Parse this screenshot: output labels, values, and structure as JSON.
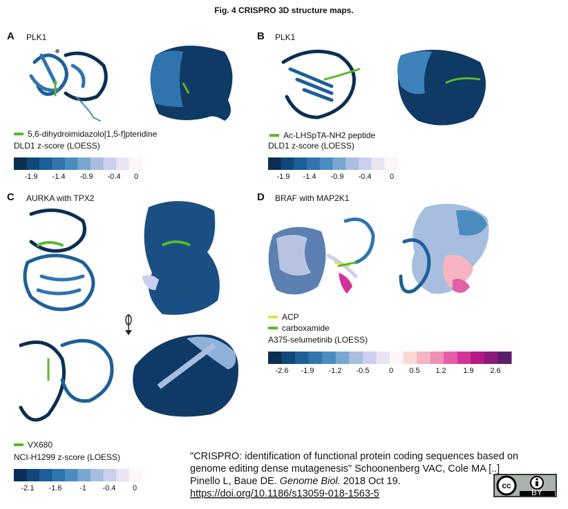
{
  "title": "Fig. 4 CRISPRO 3D structure maps.",
  "panels": [
    {
      "label": "A",
      "protein": "PLK1",
      "legend": [
        {
          "name": "5,6-dihydroimidazolo[1,5-f]pteridine",
          "color": "#5cb82a"
        }
      ],
      "scale": {
        "title": "DLD1 z-score (LOESS)",
        "colors": [
          "#0b2f52",
          "#11487a",
          "#1f5f98",
          "#2f74ad",
          "#4b8cc0",
          "#78a7d0",
          "#a7bee0",
          "#c9cfec",
          "#e8e4f3",
          "#fdf6f6"
        ],
        "ticks": [
          -1.9,
          -1.4,
          -0.9,
          -0.4,
          0
        ]
      }
    },
    {
      "label": "B",
      "protein": "PLK1",
      "legend": [
        {
          "name": "Ac-LHSpTA-NH2 peptide",
          "color": "#5cb82a"
        }
      ],
      "scale": {
        "title": "DLD1 z-score (LOESS)",
        "colors": [
          "#0b2f52",
          "#11487a",
          "#1f5f98",
          "#2f74ad",
          "#4b8cc0",
          "#78a7d0",
          "#a7bee0",
          "#c9cfec",
          "#e8e4f3",
          "#fdf6f6"
        ],
        "ticks": [
          -1.9,
          -1.4,
          -0.9,
          -0.4,
          0
        ]
      }
    },
    {
      "label": "C",
      "protein": "AURKA with TPX2",
      "legend": [
        {
          "name": "VX680",
          "color": "#5cb82a"
        }
      ],
      "scale": {
        "title": "NCI-H1299 z-score (LOESS)",
        "colors": [
          "#0b2f52",
          "#11487a",
          "#1f5f98",
          "#2f74ad",
          "#4b8cc0",
          "#78a7d0",
          "#a7bee0",
          "#c9cfec",
          "#e8e4f3",
          "#fdf6f6"
        ],
        "ticks": [
          -2.1,
          -1.6,
          -1,
          -0.4,
          0
        ]
      }
    },
    {
      "label": "D",
      "protein": "BRAF with MAP2K1",
      "legend": [
        {
          "name": "ACP",
          "color": "#e3de4a"
        },
        {
          "name": "carboxamide",
          "color": "#5cb82a"
        }
      ],
      "scale": {
        "title": "A375-selumetinib (LOESS)",
        "colors": [
          "#0b2f52",
          "#11487a",
          "#1f5f98",
          "#2f74ad",
          "#4b8cc0",
          "#78a7d0",
          "#a7bee0",
          "#c9cfec",
          "#e8e4f3",
          "#fdf6f6",
          "#fbd9d3",
          "#f6b5c0",
          "#ef8fb4",
          "#e45ea8",
          "#d33397",
          "#b61a86",
          "#8c1a7a",
          "#5c1e6b"
        ],
        "ticks": [
          -2.6,
          -1.9,
          -1.2,
          -0.5,
          0,
          0.5,
          1.2,
          1.9,
          2.6
        ]
      }
    }
  ],
  "citation": {
    "line1": "\"CRISPRO: identification of functional protein coding sequences based on",
    "line2": "genome editing dense mutagenesis\" Schoonenberg VAC, Cole MA [..]",
    "line3_before": "Pinello L, Baue DE. ",
    "journal": "Genome Biol.",
    "line3_after": " 2018 Oct 19.",
    "link": "https://doi.org/10.1186/s13059-018-1563-5"
  },
  "badge": {
    "cc": "cc",
    "by": "BY"
  }
}
